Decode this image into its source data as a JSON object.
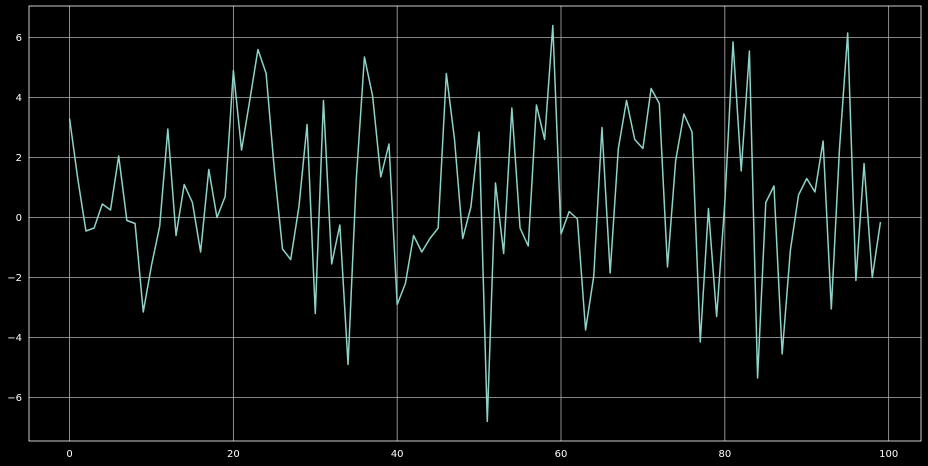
{
  "chart_data": {
    "type": "line",
    "title": "",
    "xlabel": "",
    "ylabel": "",
    "xlim": [
      -4.95,
      103.95
    ],
    "ylim": [
      -7.45,
      7.05
    ],
    "grid": true,
    "background": "#000000",
    "line_color": "#8dd3c7",
    "grid_color": "#b0b0b0",
    "text_color": "#ffffff",
    "x_ticks": [
      0,
      20,
      40,
      60,
      80,
      100
    ],
    "y_ticks": [
      -6,
      -4,
      -2,
      0,
      2,
      4,
      6
    ],
    "series": [
      {
        "x": [
          0,
          1,
          2,
          3,
          4,
          5,
          6,
          7,
          8,
          9,
          10,
          11,
          12,
          13,
          14,
          15,
          16,
          17,
          18,
          19,
          20,
          21,
          22,
          23,
          24,
          25,
          26,
          27,
          28,
          29,
          30,
          31,
          32,
          33,
          34,
          35,
          36,
          37,
          38,
          39,
          40,
          41,
          42,
          43,
          44,
          45,
          46,
          47,
          48,
          49,
          50,
          51,
          52,
          53,
          54,
          55,
          56,
          57,
          58,
          59,
          60,
          61,
          62,
          63,
          64,
          65,
          66,
          67,
          68,
          69,
          70,
          71,
          72,
          73,
          74,
          75,
          76,
          77,
          78,
          79,
          80,
          81,
          82,
          83,
          84,
          85,
          86,
          87,
          88,
          89,
          90,
          91,
          92,
          93,
          94,
          95,
          96,
          97,
          98,
          99
        ],
        "values": [
          3.3,
          1.3,
          -0.45,
          -0.35,
          0.45,
          0.25,
          2.05,
          -0.1,
          -0.2,
          -3.15,
          -1.6,
          -0.3,
          2.95,
          -0.6,
          1.1,
          0.5,
          -1.15,
          1.6,
          0.0,
          0.7,
          4.9,
          2.25,
          3.9,
          5.6,
          4.8,
          1.6,
          -1.05,
          -1.4,
          0.35,
          3.1,
          -3.2,
          3.9,
          -1.55,
          -0.25,
          -4.9,
          1.25,
          5.35,
          4.05,
          1.35,
          2.45,
          -2.9,
          -2.2,
          -0.6,
          -1.15,
          -0.7,
          -0.35,
          4.8,
          2.6,
          -0.7,
          0.35,
          2.85,
          -6.8,
          1.15,
          -1.2,
          3.65,
          -0.35,
          -0.95,
          3.75,
          2.6,
          6.4,
          -0.55,
          0.2,
          -0.05,
          -3.75,
          -1.95,
          3.0,
          -1.85,
          2.3,
          3.9,
          2.6,
          2.3,
          4.3,
          3.8,
          -1.65,
          1.9,
          3.45,
          2.85,
          -4.15,
          0.3,
          -3.3,
          0.5,
          5.85,
          1.55,
          5.55,
          -5.35,
          0.5,
          1.05,
          -4.55,
          -1.1,
          0.75,
          1.3,
          0.85,
          2.55,
          -3.05,
          2.3,
          6.15,
          -2.1,
          1.8,
          -2.0,
          -0.15
        ]
      }
    ]
  }
}
